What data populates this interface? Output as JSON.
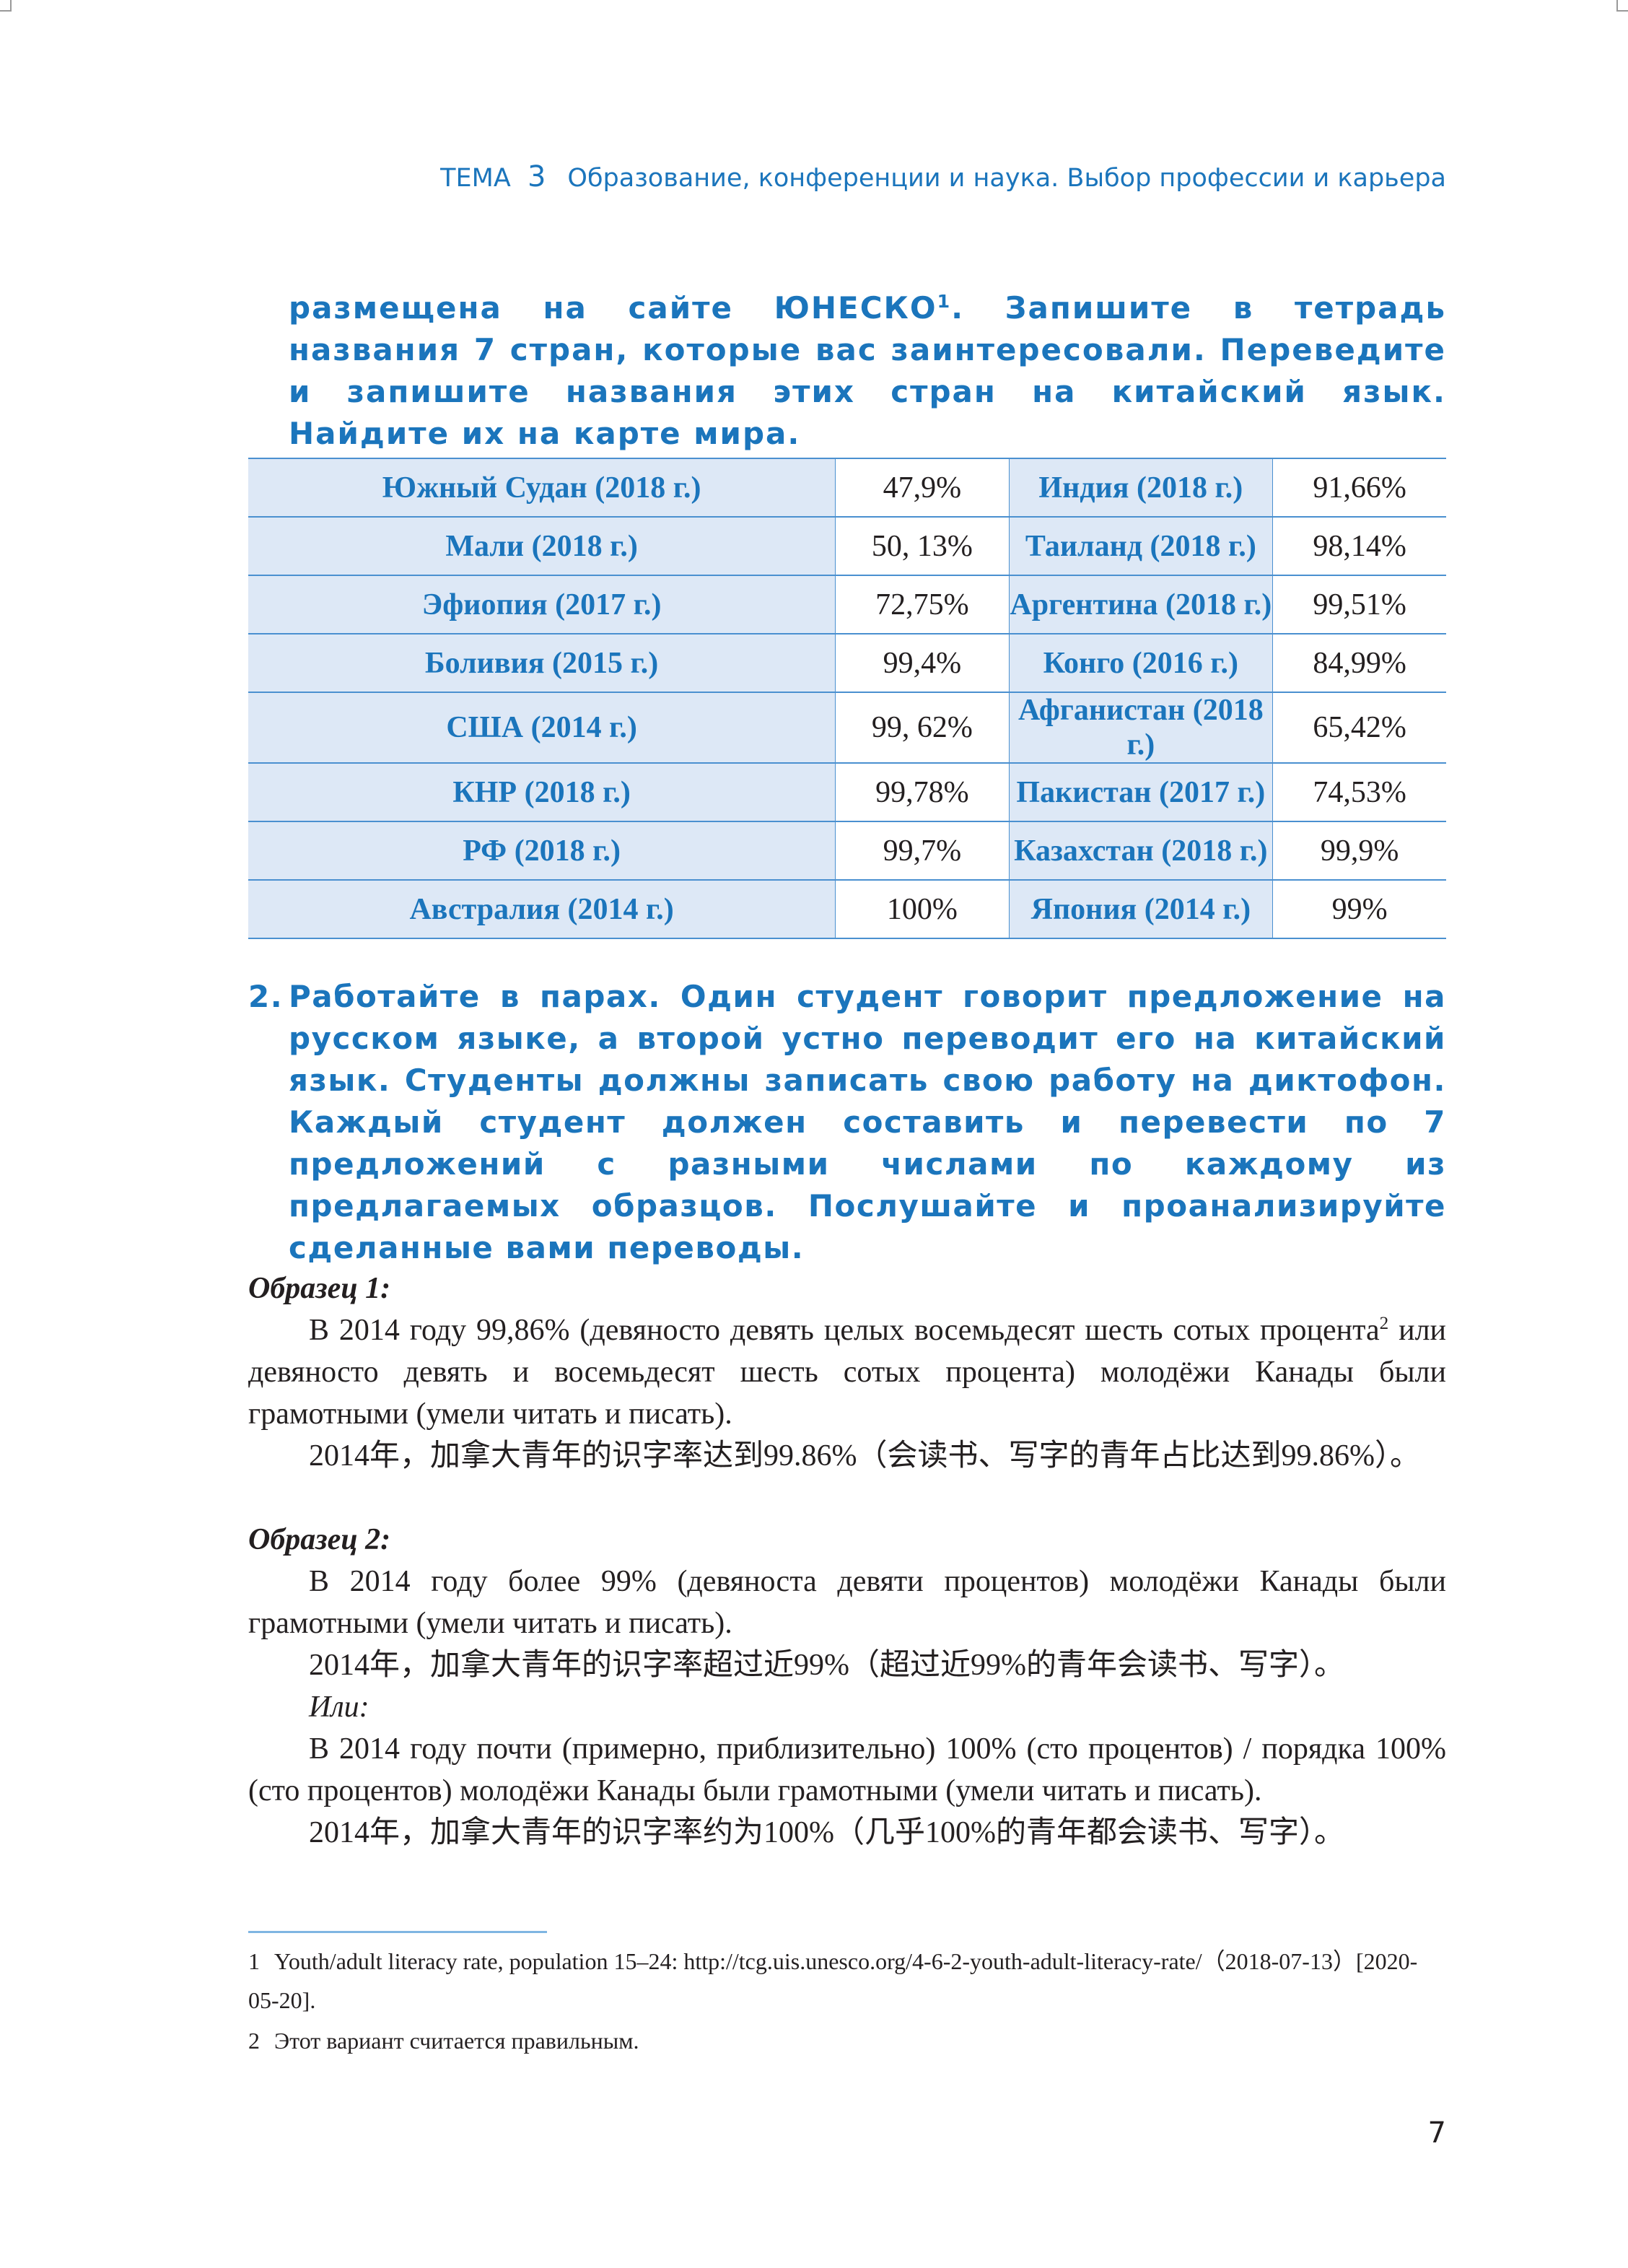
{
  "header": {
    "theme_label": "ТЕМА",
    "theme_number": "3",
    "title": "Образование, конференции и наука. Выбор профессии и карьера"
  },
  "intro": {
    "text_a": "размещена на сайте ЮНЕСКО",
    "sup": "1",
    "text_b": ". Запишите в тетрадь названия 7 стран, которые вас заинтересовали. Переведите и запишите названия этих стран на китайский язык. Найдите их на карте мира."
  },
  "table": {
    "rows": [
      [
        "Южный Судан (2018 г.)",
        "47,9%",
        "Индия (2018 г.)",
        "91,66%"
      ],
      [
        "Мали (2018 г.)",
        "50, 13%",
        "Таиланд (2018 г.)",
        "98,14%"
      ],
      [
        "Эфиопия (2017 г.)",
        "72,75%",
        "Аргентина (2018 г.)",
        "99,51%"
      ],
      [
        "Боливия (2015 г.)",
        "99,4%",
        "Конго (2016 г.)",
        "84,99%"
      ],
      [
        "США (2014 г.)",
        "99, 62%",
        "Афганистан (2018 г.)",
        "65,42%"
      ],
      [
        "КНР (2018 г.)",
        "99,78%",
        "Пакистан (2017 г.)",
        "74,53%"
      ],
      [
        "РФ (2018 г.)",
        "99,7%",
        "Казахстан (2018 г.)",
        "99,9%"
      ],
      [
        "Австралия (2014 г.)",
        "100%",
        "Япония (2014 г.)",
        "99%"
      ]
    ]
  },
  "task2": {
    "number": "2.",
    "text": "Работайте в парах. Один студент говорит предложение на русском языке, а второй устно переводит его на китайский язык. Студенты должны записать свою работу на диктофон. Каждый студент должен составить и перевести по 7 предложений с разными числами по каждому из предлагаемых образцов. Послушайте и проанализируйте сделанные вами переводы."
  },
  "sample1": {
    "heading": "Образец 1:",
    "p1a": "В 2014 году 99,86% (девяносто девять целых восемьдесят шесть сотых процента",
    "sup": "2",
    "p1b": " или девяносто девять и восемьдесят шесть сотых процента) молодёжи Канады были грамотными (умели читать и писать).",
    "zh": "2014年，加拿大青年的识字率达到99.86%（会读书、写字的青年占比达到99.86%）。"
  },
  "sample2": {
    "heading": "Образец 2:",
    "p1": "В 2014 году более 99% (девяноста девяти процентов) молодёжи Канады были грамотными (умели читать и писать).",
    "zh1": "2014年，加拿大青年的识字率超过近99%（超过近99%的青年会读书、写字）。",
    "or": "Или:",
    "p2": "В 2014 году почти (примерно, приблизительно) 100% (сто процентов) / порядка 100% (сто процентов) молодёжи Канады были грамотными (умели читать и писать).",
    "zh2": "2014年，加拿大青年的识字率约为100%（几乎100%的青年都会读书、写字）。"
  },
  "footnotes": [
    {
      "n": "1",
      "text": "Youth/adult literacy rate, population 15–24: http://tcg.uis.unesco.org/4-6-2-youth-adult-literacy-rate/（2018-07-13）[2020-05-20]."
    },
    {
      "n": "2",
      "text": "Этот вариант считается правильным."
    }
  ],
  "page_number": "7"
}
